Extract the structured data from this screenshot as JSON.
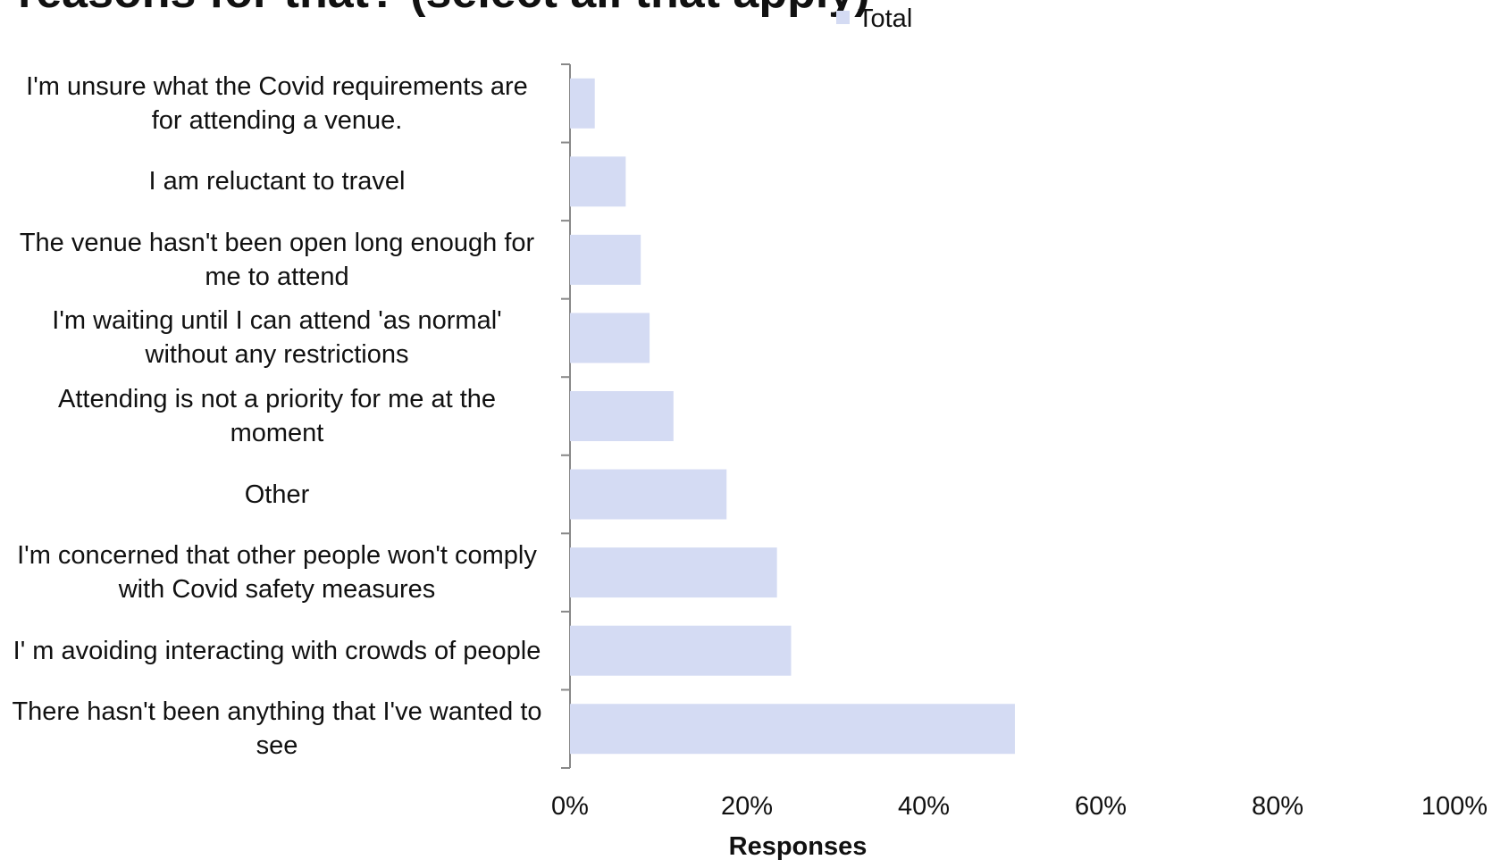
{
  "chart_data": {
    "type": "barh",
    "title": "reasons for that? (select all that apply)",
    "categories": [
      "I'm unsure what the Covid requirements are for attending a venue.",
      "I am reluctant to travel",
      "The venue hasn't been open long enough for me to attend",
      "I'm waiting until I can attend 'as normal' without any restrictions",
      "Attending is not a priority for me at the moment",
      "Other",
      "I'm concerned that other people won't comply with Covid safety measures",
      "I' m avoiding interacting with crowds of people",
      "There hasn't been anything that I've wanted to see"
    ],
    "series": [
      {
        "name": "Total",
        "color": "#d4dbf3",
        "values": [
          2.8,
          6.3,
          8.0,
          9.0,
          11.7,
          17.7,
          23.4,
          25.0,
          50.3
        ]
      }
    ],
    "xlabel": "Responses",
    "xlim": [
      0,
      100
    ],
    "xticks": [
      {
        "value": 0,
        "label": "0%"
      },
      {
        "value": 20,
        "label": "20%"
      },
      {
        "value": 40,
        "label": "40%"
      },
      {
        "value": 60,
        "label": "60%"
      },
      {
        "value": 80,
        "label": "80%"
      },
      {
        "value": 100,
        "label": "100%"
      }
    ],
    "legend": "top"
  }
}
